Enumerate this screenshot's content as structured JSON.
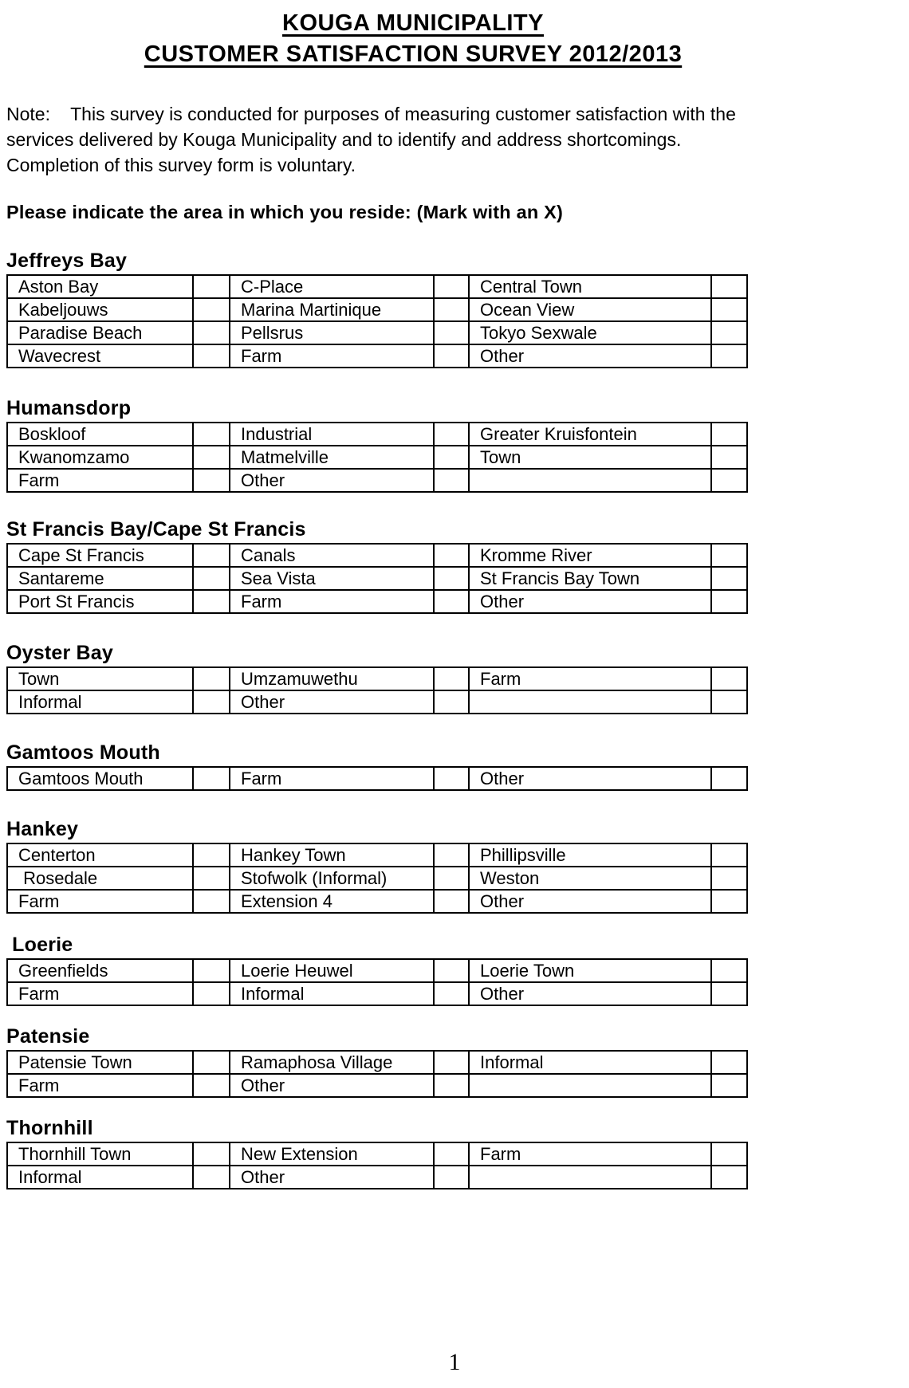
{
  "document": {
    "title_line1": "KOUGA MUNICIPALITY",
    "title_line2": "CUSTOMER SATISFACTION SURVEY 2012/2013",
    "note_line1": "Note:    This survey is conducted for purposes of measuring customer satisfaction with the",
    "note_line2": "services delivered by Kouga Municipality and to identify and address shortcomings.",
    "note_line3": "Completion of this survey form is voluntary.",
    "prompt": "Please indicate the area in which you reside: (Mark with an X)",
    "page_number": "1"
  },
  "sections": [
    {
      "heading": "Jeffreys Bay",
      "rows": [
        [
          "Aston Bay",
          "C-Place",
          "Central Town"
        ],
        [
          "Kabeljouws",
          "Marina Martinique",
          "Ocean View"
        ],
        [
          "Paradise Beach",
          "Pellsrus",
          "Tokyo Sexwale"
        ],
        [
          "Wavecrest",
          "Farm",
          "Other"
        ]
      ]
    },
    {
      "heading": "Humansdorp",
      "rows": [
        [
          "Boskloof",
          "Industrial",
          "Greater Kruisfontein"
        ],
        [
          "Kwanomzamo",
          "Matmelville",
          "Town"
        ],
        [
          "Farm",
          "Other",
          ""
        ]
      ]
    },
    {
      "heading": "St Francis Bay/Cape St Francis",
      "rows": [
        [
          "Cape St Francis",
          "Canals",
          "Kromme River"
        ],
        [
          "Santareme",
          "Sea Vista",
          "St Francis Bay Town"
        ],
        [
          "Port St Francis",
          "Farm",
          "Other"
        ]
      ]
    },
    {
      "heading": "Oyster Bay",
      "rows": [
        [
          "Town",
          "Umzamuwethu",
          "Farm"
        ],
        [
          "Informal",
          "Other",
          ""
        ]
      ]
    },
    {
      "heading": "Gamtoos Mouth",
      "rows": [
        [
          "Gamtoos Mouth",
          "Farm",
          "Other"
        ]
      ]
    },
    {
      "heading": "Hankey",
      "rows": [
        [
          "Centerton",
          "Hankey Town",
          "Phillipsville"
        ],
        [
          " Rosedale",
          "Stofwolk (Informal)",
          "Weston"
        ],
        [
          "Farm",
          "Extension 4",
          "Other"
        ]
      ]
    },
    {
      "heading": " Loerie",
      "rows": [
        [
          "Greenfields",
          "Loerie Heuwel",
          "Loerie Town"
        ],
        [
          "Farm",
          "Informal",
          "Other"
        ]
      ]
    },
    {
      "heading": "Patensie",
      "rows": [
        [
          "Patensie Town",
          "Ramaphosa Village",
          "Informal"
        ],
        [
          "Farm",
          "Other",
          ""
        ]
      ]
    },
    {
      "heading": "Thornhill",
      "rows": [
        [
          "Thornhill Town",
          "New Extension",
          "Farm"
        ],
        [
          "Informal",
          "Other",
          ""
        ]
      ]
    }
  ]
}
